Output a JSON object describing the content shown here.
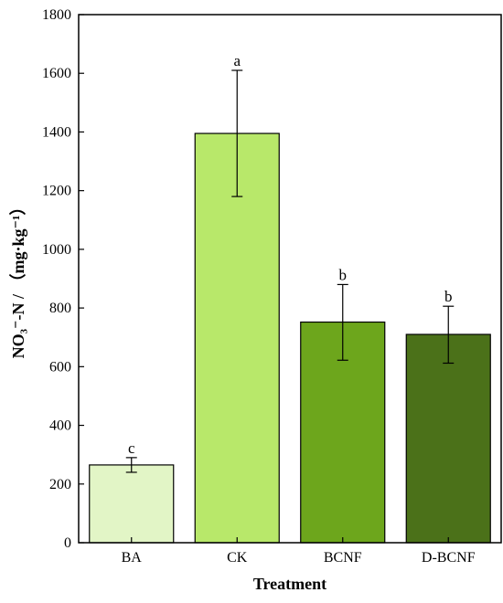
{
  "chart_data": {
    "type": "bar",
    "categories": [
      "BA",
      "CK",
      "BCNF",
      "D-BCNF"
    ],
    "values": [
      265,
      1395,
      752,
      710
    ],
    "error_low": [
      240,
      1180,
      622,
      612
    ],
    "error_high": [
      290,
      1610,
      880,
      806
    ],
    "significance": [
      "c",
      "a",
      "b",
      "b"
    ],
    "colors": [
      "#e2f5c6",
      "#b8e86a",
      "#6da61c",
      "#4b7119"
    ],
    "xlabel": "Treatment",
    "ylabel": "NO₃⁻-N / （mg·kg⁻¹）",
    "ylim": [
      0,
      1800
    ],
    "yticks": [
      0,
      200,
      400,
      600,
      800,
      1000,
      1200,
      1400,
      1600,
      1800
    ],
    "grid": false
  }
}
